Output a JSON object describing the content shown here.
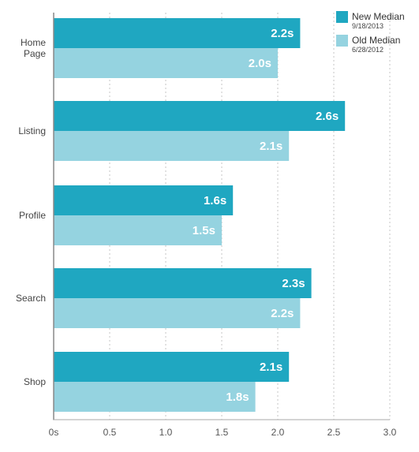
{
  "chart_data": {
    "type": "bar",
    "orientation": "horizontal",
    "categories": [
      "Home Page",
      "Listing",
      "Profile",
      "Search",
      "Shop"
    ],
    "category_lines": [
      [
        "Home",
        "Page"
      ],
      [
        "Listing"
      ],
      [
        "Profile"
      ],
      [
        "Search"
      ],
      [
        "Shop"
      ]
    ],
    "series": [
      {
        "name": "New Median",
        "date": "9/18/2013",
        "color": "#1fa7c1",
        "values": [
          2.2,
          2.6,
          1.6,
          2.3,
          2.1
        ],
        "labels": [
          "2.2s",
          "2.6s",
          "1.6s",
          "2.3s",
          "2.1s"
        ]
      },
      {
        "name": "Old Median",
        "date": "6/28/2012",
        "color": "#95d3e0",
        "values": [
          2.0,
          2.1,
          1.5,
          2.2,
          1.8
        ],
        "labels": [
          "2.0s",
          "2.1s",
          "1.5s",
          "2.2s",
          "1.8s"
        ]
      }
    ],
    "xlim": [
      0,
      3
    ],
    "x_ticks": [
      0,
      0.5,
      1,
      1.5,
      2,
      2.5,
      3
    ],
    "x_tick_labels": [
      "0s",
      "0.5",
      "1.0",
      "1.5",
      "2.0",
      "2.5",
      "3.0"
    ],
    "grid": "vertical dashed",
    "legend": "top-right",
    "title": "",
    "xlabel": "",
    "ylabel": ""
  }
}
